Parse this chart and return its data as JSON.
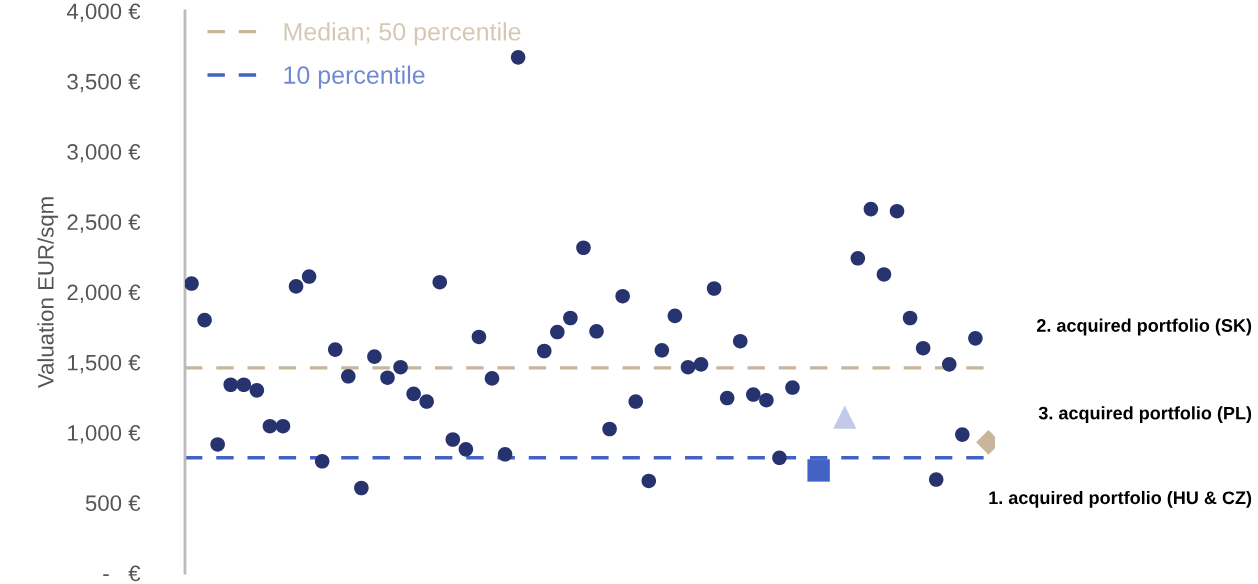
{
  "chart_data": {
    "type": "scatter",
    "ylabel": "Valuation EUR/sqm",
    "categories": [
      null,
      null,
      null,
      null,
      null,
      null,
      null,
      null,
      null,
      null,
      null,
      null,
      null,
      null,
      null,
      null,
      null,
      null,
      null,
      null,
      null,
      null,
      null,
      null,
      null,
      null,
      null,
      null,
      null,
      null,
      null,
      null,
      null,
      null,
      null,
      null,
      null,
      null,
      null,
      null,
      null,
      null,
      null,
      null,
      null,
      null,
      null,
      null,
      null,
      null,
      null,
      null,
      null,
      null,
      null,
      null,
      null,
      null,
      null,
      null,
      null,
      null
    ],
    "series": [
      {
        "color": "#27336e",
        "marker": "circle",
        "values": [
          2060,
          1800,
          915,
          1340,
          1340,
          1300,
          1045,
          1045,
          2040,
          2110,
          795,
          1590,
          1400,
          605,
          1540,
          1390,
          1465,
          1275,
          1220,
          2070,
          950,
          880,
          1680,
          1385,
          845,
          3670,
          null,
          1580,
          1715,
          1815,
          2315,
          1720,
          1025,
          1970,
          1220,
          655,
          1585,
          1830,
          1465,
          1485,
          2025,
          1245,
          1650,
          1270,
          1230,
          820,
          1320,
          null,
          null,
          null,
          null,
          2240,
          2590,
          2125,
          2575,
          1815,
          1600,
          665,
          1485,
          985,
          1670,
          null
        ]
      },
      {
        "color": "#4262c4",
        "marker": "square",
        "values": [
          null,
          null,
          null,
          null,
          null,
          null,
          null,
          null,
          null,
          null,
          null,
          null,
          null,
          null,
          null,
          null,
          null,
          null,
          null,
          null,
          null,
          null,
          null,
          null,
          null,
          null,
          null,
          null,
          null,
          null,
          null,
          null,
          null,
          null,
          null,
          null,
          null,
          null,
          null,
          null,
          null,
          null,
          null,
          null,
          null,
          null,
          null,
          null,
          730,
          null,
          null,
          null,
          null,
          null,
          null,
          null,
          null,
          null,
          null,
          null,
          null,
          null
        ]
      },
      {
        "color": "#c2c9ea",
        "marker": "triangle",
        "values": [
          null,
          null,
          null,
          null,
          null,
          null,
          null,
          null,
          null,
          null,
          null,
          null,
          null,
          null,
          null,
          null,
          null,
          null,
          null,
          null,
          null,
          null,
          null,
          null,
          null,
          null,
          null,
          null,
          null,
          null,
          null,
          null,
          null,
          null,
          null,
          null,
          null,
          null,
          null,
          null,
          null,
          null,
          null,
          null,
          null,
          null,
          null,
          null,
          null,
          null,
          1110,
          null,
          null,
          null,
          null,
          null,
          null,
          null,
          null,
          null,
          null,
          null
        ]
      },
      {
        "color": "#c8b59c",
        "marker": "diamond",
        "values": [
          null,
          null,
          null,
          null,
          null,
          null,
          null,
          null,
          null,
          null,
          null,
          null,
          null,
          null,
          null,
          null,
          null,
          null,
          null,
          null,
          null,
          null,
          null,
          null,
          null,
          null,
          null,
          null,
          null,
          null,
          null,
          null,
          null,
          null,
          null,
          null,
          null,
          null,
          null,
          null,
          null,
          null,
          null,
          null,
          null,
          null,
          null,
          null,
          null,
          null,
          null,
          null,
          null,
          null,
          null,
          null,
          null,
          null,
          null,
          null,
          null,
          930
        ]
      }
    ],
    "ylim": [
      0,
      4000
    ],
    "yticks": [
      {
        "value": 0,
        "label": "-   €"
      },
      {
        "value": 500,
        "label": "500 €"
      },
      {
        "value": 1000,
        "label": "1,000 €"
      },
      {
        "value": 1500,
        "label": "1,500 €"
      },
      {
        "value": 2000,
        "label": "2,000 €"
      },
      {
        "value": 2500,
        "label": "2,500 €"
      },
      {
        "value": 3000,
        "label": "3,000 €"
      },
      {
        "value": 3500,
        "label": "3,500 €"
      },
      {
        "value": 4000,
        "label": "4,000 €"
      }
    ],
    "ref_lines": [
      {
        "axis": "y",
        "value": 1460,
        "label": "Median; 50 percentile",
        "color": "#c8b59c",
        "line_style": "dashed"
      },
      {
        "axis": "y",
        "value": 820,
        "label": "10 percentile",
        "color": "#4262c4",
        "line_style": "dashed"
      }
    ],
    "legend": "top left",
    "grid": false,
    "tick_labels": "y",
    "annotations": [
      "2. acquired portfolio (SK)",
      "3. acquired portfolio (PL)",
      "1. acquired portfolio (HU & CZ)"
    ]
  }
}
